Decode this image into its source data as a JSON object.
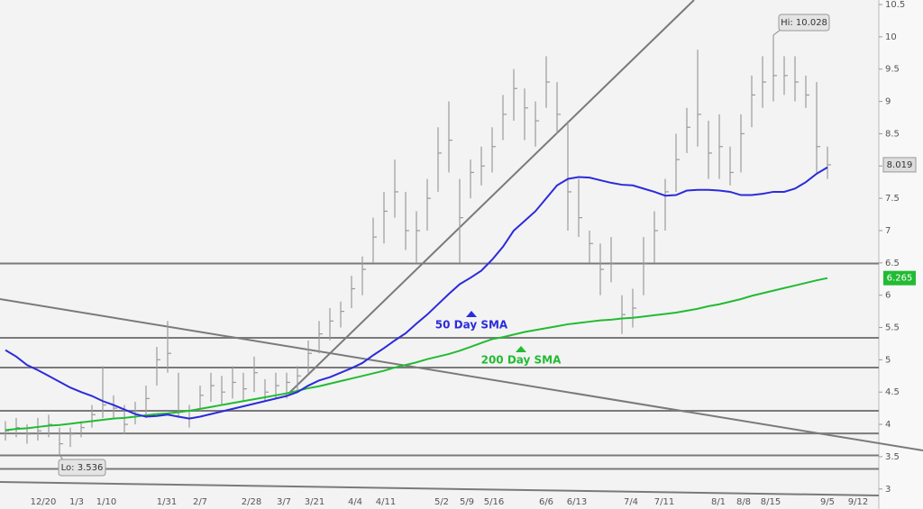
{
  "chart_data": {
    "type": "ohlc",
    "x_labels": [
      "12/20",
      "1/3",
      "1/10",
      "1/31",
      "2/7",
      "2/28",
      "3/7",
      "3/21",
      "4/4",
      "4/11",
      "5/2",
      "5/9",
      "5/16",
      "6/6",
      "6/13",
      "7/4",
      "7/11",
      "8/1",
      "8/8",
      "8/15",
      "9/5",
      "9/12"
    ],
    "high": [
      4.05,
      4.1,
      4.0,
      4.1,
      4.15,
      3.95,
      3.95,
      4.05,
      4.3,
      4.9,
      4.45,
      4.3,
      4.35,
      4.6,
      5.2,
      5.6,
      4.8,
      4.3,
      4.6,
      4.8,
      4.75,
      4.9,
      4.8,
      5.05,
      4.7,
      4.8,
      4.8,
      4.9,
      5.3,
      5.6,
      5.8,
      5.9,
      6.3,
      6.6,
      7.2,
      7.6,
      8.1,
      7.6,
      7.3,
      7.8,
      8.6,
      9.0,
      7.8,
      8.1,
      8.3,
      8.6,
      9.1,
      9.5,
      9.2,
      9.0,
      9.7,
      9.3,
      8.7,
      7.8,
      7.0,
      6.8,
      6.9,
      6.0,
      6.1,
      6.9,
      7.3,
      7.8,
      8.5,
      8.9,
      9.8,
      8.7,
      8.8,
      8.3,
      8.8,
      9.4,
      9.7,
      10.028,
      9.7,
      9.7,
      9.4,
      9.3,
      8.3
    ],
    "low": [
      3.75,
      3.8,
      3.7,
      3.75,
      3.8,
      3.536,
      3.65,
      3.8,
      3.95,
      4.1,
      4.1,
      3.85,
      4.0,
      4.1,
      4.6,
      4.8,
      4.1,
      3.95,
      4.2,
      4.35,
      4.3,
      4.4,
      4.35,
      4.5,
      4.35,
      4.4,
      4.4,
      4.5,
      4.8,
      5.1,
      5.3,
      5.5,
      5.8,
      6.0,
      6.5,
      6.8,
      7.2,
      6.7,
      6.5,
      7.0,
      7.6,
      7.9,
      6.5,
      7.5,
      7.7,
      7.9,
      8.4,
      8.7,
      8.4,
      8.3,
      8.9,
      8.5,
      7.0,
      6.9,
      6.5,
      6.0,
      6.2,
      5.4,
      5.5,
      6.0,
      6.5,
      7.0,
      7.6,
      8.2,
      8.3,
      7.8,
      7.8,
      7.7,
      7.9,
      8.6,
      8.9,
      9.0,
      9.1,
      9.0,
      8.9,
      7.9,
      7.8
    ],
    "close": [
      3.9,
      3.95,
      3.85,
      3.9,
      4.0,
      3.7,
      3.85,
      3.95,
      4.15,
      4.3,
      4.25,
      4.0,
      4.2,
      4.4,
      5.0,
      5.1,
      4.2,
      4.1,
      4.45,
      4.6,
      4.5,
      4.65,
      4.55,
      4.8,
      4.5,
      4.6,
      4.65,
      4.75,
      5.1,
      5.4,
      5.6,
      5.75,
      6.1,
      6.4,
      6.9,
      7.3,
      7.6,
      7.0,
      7.0,
      7.5,
      8.2,
      8.4,
      7.2,
      7.9,
      8.0,
      8.3,
      8.8,
      9.2,
      8.9,
      8.7,
      9.3,
      8.8,
      7.6,
      7.2,
      6.8,
      6.4,
      6.5,
      5.7,
      5.8,
      6.5,
      7.0,
      7.6,
      8.1,
      8.6,
      8.8,
      8.2,
      8.3,
      7.9,
      8.5,
      9.1,
      9.3,
      9.4,
      9.4,
      9.3,
      9.1,
      8.3,
      8.019
    ],
    "sma50": [
      5.15,
      5.05,
      4.92,
      4.84,
      4.75,
      4.66,
      4.57,
      4.5,
      4.44,
      4.36,
      4.3,
      4.23,
      4.16,
      4.12,
      4.13,
      4.15,
      4.12,
      4.09,
      4.12,
      4.16,
      4.2,
      4.24,
      4.28,
      4.32,
      4.36,
      4.4,
      4.44,
      4.5,
      4.6,
      4.68,
      4.73,
      4.8,
      4.87,
      4.95,
      5.07,
      5.18,
      5.3,
      5.41,
      5.56,
      5.7,
      5.86,
      6.02,
      6.17,
      6.27,
      6.38,
      6.55,
      6.75,
      7.0,
      7.15,
      7.3,
      7.5,
      7.7,
      7.8,
      7.83,
      7.82,
      7.78,
      7.74,
      7.71,
      7.7,
      7.65,
      7.6,
      7.54,
      7.55,
      7.62,
      7.63,
      7.63,
      7.62,
      7.6,
      7.55,
      7.55,
      7.57,
      7.6,
      7.6,
      7.65,
      7.75,
      7.88,
      7.98
    ],
    "sma200": [
      3.91,
      3.93,
      3.94,
      3.96,
      3.98,
      3.99,
      4.01,
      4.03,
      4.05,
      4.07,
      4.09,
      4.1,
      4.12,
      4.14,
      4.16,
      4.17,
      4.19,
      4.21,
      4.24,
      4.27,
      4.3,
      4.33,
      4.36,
      4.39,
      4.42,
      4.45,
      4.48,
      4.52,
      4.56,
      4.59,
      4.63,
      4.67,
      4.71,
      4.75,
      4.79,
      4.83,
      4.88,
      4.92,
      4.96,
      5.01,
      5.05,
      5.09,
      5.14,
      5.2,
      5.26,
      5.32,
      5.35,
      5.39,
      5.43,
      5.46,
      5.49,
      5.52,
      5.55,
      5.57,
      5.59,
      5.61,
      5.62,
      5.64,
      5.65,
      5.67,
      5.69,
      5.71,
      5.73,
      5.76,
      5.79,
      5.83,
      5.86,
      5.9,
      5.94,
      5.99,
      6.03,
      6.07,
      6.11,
      6.15,
      6.19,
      6.23,
      6.265
    ],
    "bar_color": "#9a9a9a",
    "sma50_color": "#2b2bdc",
    "sma50_label": "50 Day SMA",
    "sma200_color": "#22bb33",
    "sma200_label": "200 Day SMA",
    "hi_label": "Hi: 10.028",
    "lo_label": "Lo: 3.536",
    "horizontal_lines": [
      6.49,
      5.34,
      4.88,
      4.21,
      3.86,
      3.52,
      3.31
    ],
    "ylim": [
      2.69,
      10.57
    ],
    "yticks": [
      3,
      3.5,
      4,
      4.5,
      5,
      5.5,
      6,
      6.5,
      7,
      7.5,
      8,
      8.5,
      9,
      9.5,
      10,
      10.5
    ]
  }
}
